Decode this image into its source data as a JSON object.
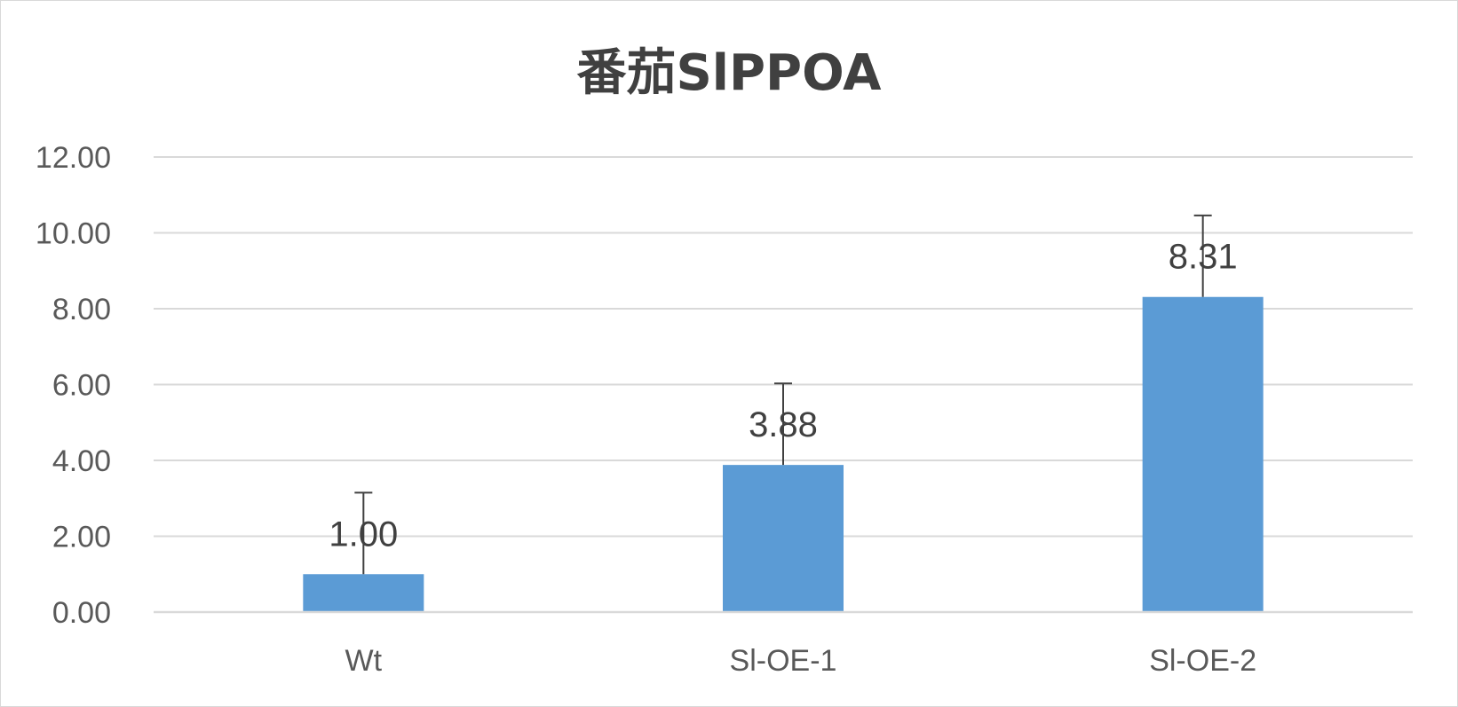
{
  "chart_data": {
    "type": "bar",
    "title": "番茄SlPPOA",
    "categories": [
      "Wt",
      "Sl-OE-1",
      "Sl-OE-2"
    ],
    "values": [
      1.0,
      3.88,
      8.31
    ],
    "data_labels": [
      "1.00",
      "3.88",
      "8.31"
    ],
    "error_upper": [
      2.15,
      2.15,
      2.15
    ],
    "ylim": [
      0,
      12
    ],
    "yticks": [
      "0.00",
      "2.00",
      "4.00",
      "6.00",
      "8.00",
      "10.00",
      "12.00"
    ],
    "grid": true,
    "legend": "none",
    "colors": {
      "bar": "#5b9bd5",
      "grid": "#d9d9d9",
      "error_bar": "#404040"
    }
  }
}
